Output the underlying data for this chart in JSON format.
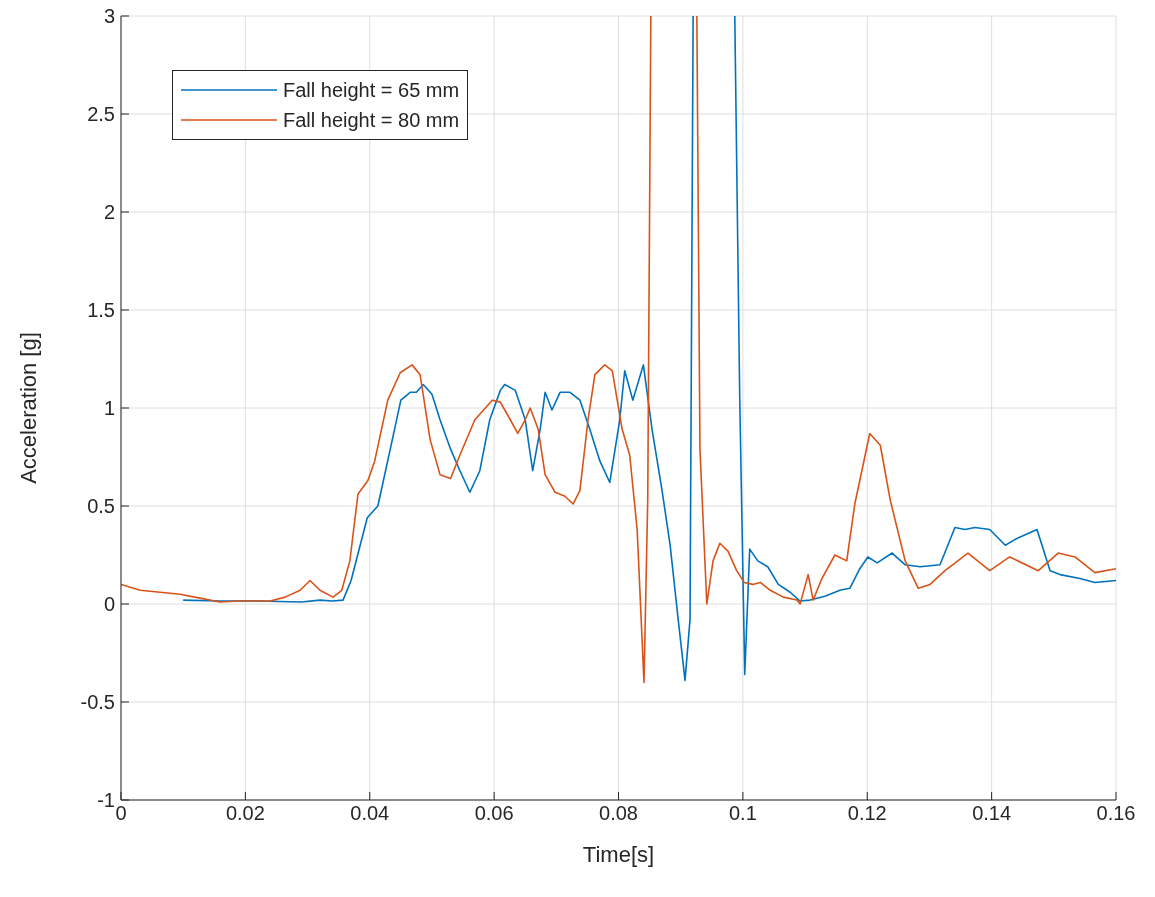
{
  "chart_data": {
    "type": "line",
    "xlabel": "Time[s]",
    "ylabel": "Acceleration [g]",
    "xlim": [
      0,
      0.16
    ],
    "ylim": [
      -1,
      3
    ],
    "xticks": [
      0,
      0.02,
      0.04,
      0.06,
      0.08,
      0.1,
      0.12,
      0.14,
      0.16
    ],
    "yticks": [
      -1,
      -0.5,
      0,
      0.5,
      1,
      1.5,
      2,
      2.5,
      3
    ],
    "grid": true,
    "legend": "top left",
    "marker": "none",
    "line_style": "solid",
    "series": [
      {
        "name": "Fall height = 65 mm",
        "color": "#0072bd",
        "x": [
          0.01,
          0.016,
          0.022,
          0.029,
          0.032,
          0.034,
          0.0357,
          0.037,
          0.0396,
          0.0413,
          0.0433,
          0.045,
          0.0465,
          0.0475,
          0.0486,
          0.05,
          0.0513,
          0.053,
          0.0545,
          0.0561,
          0.0577,
          0.0593,
          0.061,
          0.0617,
          0.0634,
          0.065,
          0.0662,
          0.0674,
          0.0682,
          0.0693,
          0.0706,
          0.0722,
          0.0738,
          0.0754,
          0.077,
          0.0786,
          0.0802,
          0.081,
          0.0823,
          0.084,
          0.0854,
          0.087,
          0.0883,
          0.0896,
          0.0907,
          0.0915,
          0.092,
          0.095,
          0.0987,
          0.0995,
          0.1003,
          0.1011,
          0.1024,
          0.104,
          0.1057,
          0.1076,
          0.1092,
          0.1108,
          0.1132,
          0.1156,
          0.1172,
          0.1188,
          0.1201,
          0.1216,
          0.124,
          0.1261,
          0.1285,
          0.1317,
          0.1341,
          0.1357,
          0.1373,
          0.1397,
          0.1422,
          0.1438,
          0.1473,
          0.1494,
          0.151,
          0.1542,
          0.1566,
          0.16
        ],
        "values": [
          0.02,
          0.015,
          0.015,
          0.01,
          0.02,
          0.015,
          0.02,
          0.12,
          0.44,
          0.5,
          0.79,
          1.04,
          1.08,
          1.08,
          1.12,
          1.07,
          0.94,
          0.79,
          0.68,
          0.57,
          0.68,
          0.94,
          1.09,
          1.12,
          1.09,
          0.94,
          0.68,
          0.89,
          1.08,
          0.99,
          1.08,
          1.08,
          1.04,
          0.89,
          0.73,
          0.62,
          0.94,
          1.19,
          1.04,
          1.22,
          0.89,
          0.58,
          0.3,
          -0.08,
          -0.39,
          -0.08,
          3,
          null,
          3,
          1.04,
          -0.36,
          0.28,
          0.22,
          0.19,
          0.1,
          0.06,
          0.015,
          0.02,
          0.04,
          0.07,
          0.08,
          0.18,
          0.24,
          0.21,
          0.26,
          0.2,
          0.19,
          0.2,
          0.39,
          0.38,
          0.39,
          0.38,
          0.3,
          0.33,
          0.38,
          0.17,
          0.15,
          0.13,
          0.11,
          0.12
        ]
      },
      {
        "name": "Fall height = 80 mm",
        "color": "#d95319",
        "x": [
          0,
          0.0031,
          0.0063,
          0.0095,
          0.0127,
          0.0159,
          0.0191,
          0.024,
          0.0264,
          0.0288,
          0.0304,
          0.032,
          0.0341,
          0.0355,
          0.0368,
          0.0381,
          0.0397,
          0.0408,
          0.0429,
          0.0449,
          0.0468,
          0.0481,
          0.0497,
          0.0513,
          0.053,
          0.0545,
          0.0569,
          0.0597,
          0.061,
          0.0626,
          0.0638,
          0.065,
          0.0658,
          0.0671,
          0.0682,
          0.0698,
          0.0714,
          0.0727,
          0.0738,
          0.0751,
          0.0762,
          0.0778,
          0.079,
          0.0806,
          0.0818,
          0.083,
          0.0841,
          0.0847,
          0.0852,
          0.089,
          0.0926,
          0.0931,
          0.0942,
          0.0952,
          0.0963,
          0.0976,
          0.099,
          0.1002,
          0.1016,
          0.1028,
          0.1044,
          0.1065,
          0.1087,
          0.1092,
          0.1105,
          0.1113,
          0.1127,
          0.1148,
          0.1167,
          0.118,
          0.1204,
          0.1221,
          0.1237,
          0.1261,
          0.1282,
          0.1301,
          0.1325,
          0.1362,
          0.1397,
          0.1429,
          0.1475,
          0.1507,
          0.1534,
          0.1566,
          0.16
        ],
        "values": [
          0.1,
          0.07,
          0.06,
          0.05,
          0.03,
          0.01,
          0.015,
          0.015,
          0.035,
          0.07,
          0.12,
          0.07,
          0.035,
          0.07,
          0.22,
          0.56,
          0.63,
          0.73,
          1.04,
          1.18,
          1.22,
          1.17,
          0.84,
          0.66,
          0.64,
          0.76,
          0.94,
          1.04,
          1.03,
          0.94,
          0.87,
          0.94,
          1.0,
          0.89,
          0.66,
          0.57,
          0.55,
          0.51,
          0.58,
          0.94,
          1.17,
          1.22,
          1.19,
          0.89,
          0.76,
          0.38,
          -0.4,
          0.53,
          3,
          null,
          3,
          0.79,
          0.0,
          0.22,
          0.31,
          0.27,
          0.17,
          0.11,
          0.1,
          0.11,
          0.07,
          0.035,
          0.02,
          0.0,
          0.15,
          0.02,
          0.13,
          0.25,
          0.22,
          0.51,
          0.87,
          0.81,
          0.53,
          0.22,
          0.08,
          0.1,
          0.17,
          0.26,
          0.17,
          0.24,
          0.17,
          0.26,
          0.24,
          0.16,
          0.18
        ]
      }
    ]
  }
}
